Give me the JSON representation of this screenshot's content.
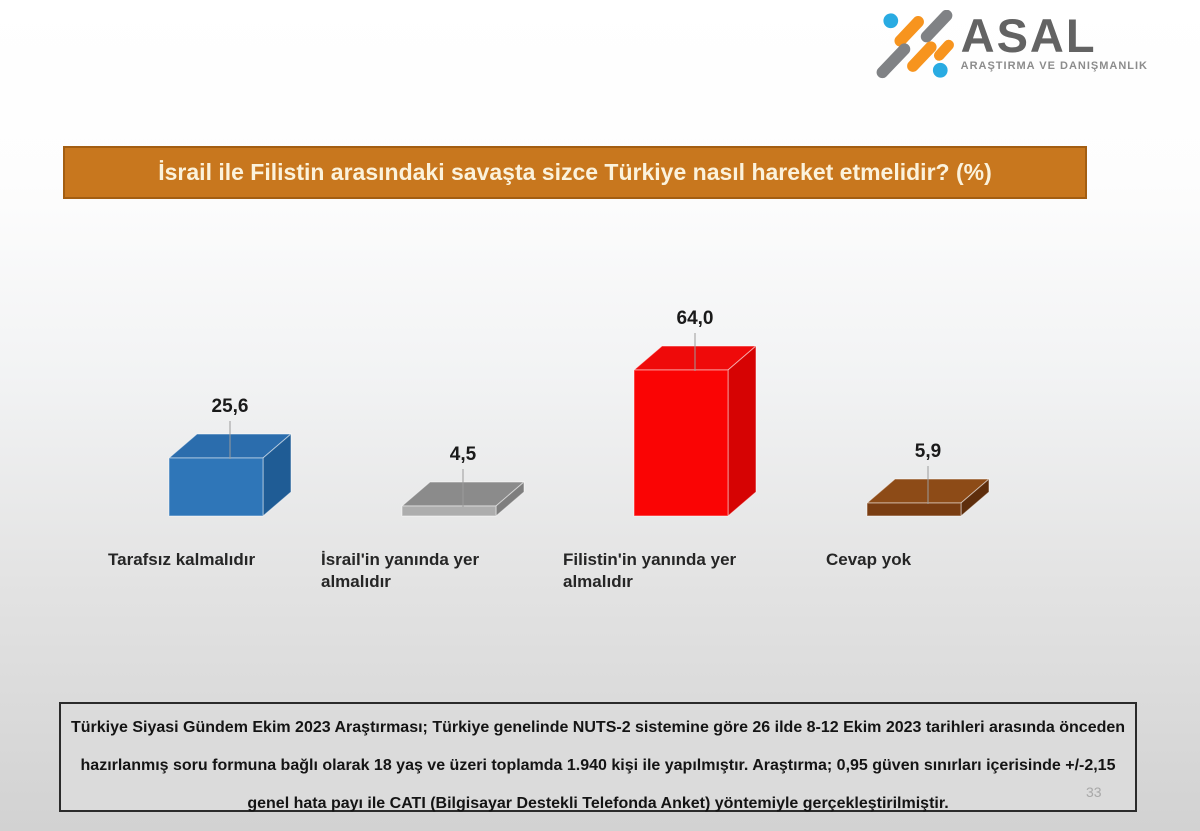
{
  "page": {
    "background_top": "#FFFFFF",
    "background_bottom": "#D2D2D2",
    "page_number": "33"
  },
  "logo": {
    "name": "ASAL",
    "subtitle": "ARAŞTIRMA VE DANIŞMANLIK",
    "colors": {
      "gray": "#808285",
      "orange": "#F7941E",
      "blue": "#29ABE2",
      "wordmark_text": "#636363",
      "subtitle_text": "#8C8C8C"
    }
  },
  "title_banner": {
    "text": "İsrail ile Filistin arasındaki savaşta sizce Türkiye nasıl hareket etmelidir? (%)",
    "background": "#C8771E",
    "border": "#A35E12",
    "text_color": "#FBF2DC"
  },
  "chart_data": {
    "type": "bar",
    "style": "3d-column",
    "title": "İsrail ile Filistin arasındaki savaşta sizce Türkiye nasıl hareket etmelidir? (%)",
    "unit": "percent",
    "categories": [
      "Tarafsız kalmalıdır",
      "İsrail'in yanında yer almalıdır",
      "Filistin'in yanında yer almalıdır",
      "Cevap yok"
    ],
    "values": [
      25.6,
      4.5,
      64.0,
      5.9
    ],
    "bars": [
      {
        "category": "Tarafsız kalmalıdır",
        "value": 25.6,
        "display": "25,6",
        "color_front": "#2F76B8",
        "color_top": "#2B6DAD",
        "color_side": "#1F5C95"
      },
      {
        "category": "İsrail'in yanında yer almalıdır",
        "value": 4.5,
        "display": "4,5",
        "color_front": "#ADADAD",
        "color_top": "#8B8B8B",
        "color_side": "#7E7E7E"
      },
      {
        "category": "Filistin'in yanında yer almalıdır",
        "value": 64.0,
        "display": "64,0",
        "color_front": "#FA0404",
        "color_top": "#EF0A0A",
        "color_side": "#D60303"
      },
      {
        "category": "Cevap yok",
        "value": 5.9,
        "display": "5,9",
        "color_front": "#7A3D12",
        "color_top": "#8D4B17",
        "color_side": "#5E2E0C"
      }
    ],
    "ylim": [
      0,
      70
    ],
    "grid": false,
    "legend": false,
    "axes_visible": false
  },
  "footer": {
    "lines": [
      "Türkiye Siyasi Gündem Ekim 2023 Araştırması; Türkiye genelinde NUTS-2 sistemine göre 26 ilde 8-12 Ekim 2023 tarihleri arasında önceden",
      "hazırlanmış soru formuna bağlı olarak 18 yaş ve üzeri toplamda 1.940 kişi ile yapılmıştır. Araştırma; 0,95 güven sınırları içerisinde +/-2,15",
      "genel hata payı ile CATI (Bilgisayar Destekli Telefonda Anket) yöntemiyle gerçekleştirilmiştir."
    ],
    "background": "#DBDBDB",
    "border": "#2B2B2B"
  }
}
